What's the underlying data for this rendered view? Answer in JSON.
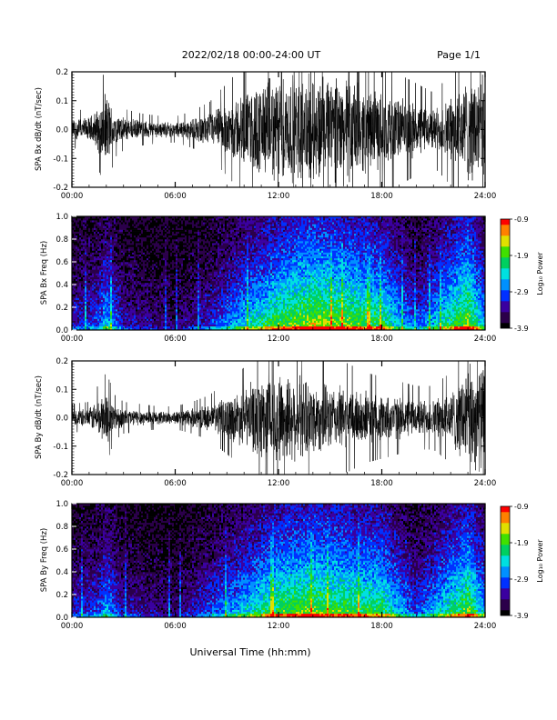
{
  "header": {
    "title": "2022/02/18   00:00-24:00  UT",
    "page": "Page 1/1"
  },
  "xlabel": "Universal Time (hh:mm)",
  "colors": {
    "background": "#ffffff",
    "trace": "#000000",
    "colormap": [
      "#000000",
      "#2b004a",
      "#3a00a0",
      "#0030ff",
      "#0090ff",
      "#00e0e0",
      "#00d060",
      "#40e000",
      "#e0e000",
      "#ff8000",
      "#ff0000"
    ]
  },
  "chart_data": [
    {
      "type": "line",
      "ylabel": "SPA Bx dB/dt (nT/sec)",
      "x_ticks": [
        "00:00",
        "06:00",
        "12:00",
        "18:00",
        "24:00"
      ],
      "xlim": [
        0,
        24
      ],
      "ylim": [
        -0.2,
        0.2
      ],
      "y_ticks": [
        "-0.2",
        "-0.1",
        "0.0",
        "0.1",
        "0.2"
      ],
      "envelope": {
        "x_hours": [
          0,
          1,
          1.5,
          2,
          2.5,
          3,
          4,
          5,
          6,
          7,
          8,
          9,
          10,
          11,
          12,
          13,
          14,
          15,
          16,
          17,
          18,
          19,
          20,
          21,
          22,
          23,
          24
        ],
        "amplitude": [
          0.04,
          0.045,
          0.08,
          0.14,
          0.06,
          0.045,
          0.035,
          0.03,
          0.028,
          0.04,
          0.06,
          0.1,
          0.14,
          0.18,
          0.2,
          0.2,
          0.2,
          0.2,
          0.2,
          0.16,
          0.14,
          0.12,
          0.1,
          0.08,
          0.12,
          0.2,
          0.2
        ]
      }
    },
    {
      "type": "heatmap",
      "ylabel": "SPA Bx Freq (Hz)",
      "x_ticks": [
        "00:00",
        "06:00",
        "12:00",
        "18:00",
        "24:00"
      ],
      "xlim": [
        0,
        24
      ],
      "ylim": [
        0,
        1.0
      ],
      "y_ticks": [
        "0.0",
        "0.2",
        "0.4",
        "0.6",
        "0.8",
        "1.0"
      ],
      "colorbar": {
        "label": "Log₁₀ Power",
        "ticks": [
          "-0.9",
          "-1.9",
          "-2.9",
          "-3.9"
        ],
        "range": [
          -3.9,
          -0.9
        ]
      },
      "activity_hours": [
        0,
        1.5,
        2,
        3,
        6,
        8,
        10,
        12,
        14,
        16,
        18,
        20,
        23,
        24
      ],
      "activity_level": [
        0.25,
        0.35,
        0.55,
        0.25,
        0.15,
        0.3,
        0.55,
        0.75,
        0.85,
        0.8,
        0.7,
        0.35,
        0.85,
        0.5
      ]
    },
    {
      "type": "line",
      "ylabel": "SPA By dB/dt (nT/sec)",
      "x_ticks": [
        "00:00",
        "06:00",
        "12:00",
        "18:00",
        "24:00"
      ],
      "xlim": [
        0,
        24
      ],
      "ylim": [
        -0.2,
        0.2
      ],
      "y_ticks": [
        "-0.2",
        "-0.1",
        "0.0",
        "0.1",
        "0.2"
      ],
      "envelope": {
        "x_hours": [
          0,
          1,
          1.5,
          2,
          2.5,
          3,
          4,
          5,
          6,
          7,
          8,
          9,
          10,
          11,
          12,
          13,
          14,
          15,
          16,
          17,
          18,
          19,
          20,
          21,
          22,
          23,
          24
        ],
        "amplitude": [
          0.03,
          0.035,
          0.07,
          0.1,
          0.05,
          0.035,
          0.03,
          0.025,
          0.025,
          0.035,
          0.05,
          0.08,
          0.11,
          0.16,
          0.18,
          0.16,
          0.14,
          0.12,
          0.12,
          0.1,
          0.09,
          0.08,
          0.07,
          0.07,
          0.1,
          0.2,
          0.2
        ]
      }
    },
    {
      "type": "heatmap",
      "ylabel": "SPA By Freq (Hz)",
      "x_ticks": [
        "00:00",
        "06:00",
        "12:00",
        "18:00",
        "24:00"
      ],
      "xlim": [
        0,
        24
      ],
      "ylim": [
        0,
        1.0
      ],
      "y_ticks": [
        "0.0",
        "0.2",
        "0.4",
        "0.6",
        "0.8",
        "1.0"
      ],
      "colorbar": {
        "label": "Log₁₀ Power",
        "ticks": [
          "-0.9",
          "-1.9",
          "-2.9",
          "-3.9"
        ],
        "range": [
          -3.9,
          -0.9
        ]
      },
      "activity_hours": [
        0,
        1.5,
        2,
        3,
        6,
        8,
        10,
        12,
        14,
        16,
        18,
        20,
        23,
        24
      ],
      "activity_level": [
        0.25,
        0.35,
        0.5,
        0.25,
        0.15,
        0.35,
        0.55,
        0.75,
        0.8,
        0.75,
        0.7,
        0.35,
        0.8,
        0.5
      ]
    }
  ]
}
